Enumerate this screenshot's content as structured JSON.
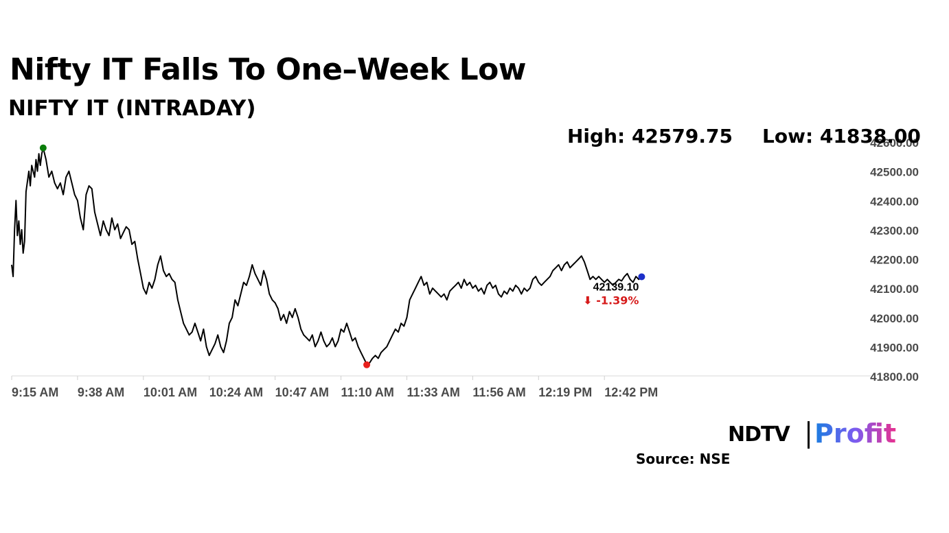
{
  "header": {
    "title": "Nifty IT Falls To One–Week Low",
    "subtitle": "NIFTY IT (INTRADAY)",
    "high_text": "High: 42579.75",
    "low_text": "Low: 41838.00"
  },
  "footer": {
    "logo_ndtv": "NDTV",
    "logo_profit": "Profit",
    "source": "Source: NSE"
  },
  "chart_data": {
    "type": "line",
    "title": "NIFTY IT (INTRADAY)",
    "xlabel": "",
    "ylabel": "",
    "ylim": [
      41800,
      42600
    ],
    "xlim": [
      0,
      300
    ],
    "yticks": [
      "42600.00",
      "42500.00",
      "42400.00",
      "42300.00",
      "42200.00",
      "42100.00",
      "42000.00",
      "41900.00",
      "41800.00"
    ],
    "ytick_values": [
      42600,
      42500,
      42400,
      42300,
      42200,
      42100,
      42000,
      41900,
      41800
    ],
    "xticks": [
      "9:15 AM",
      "9:38 AM",
      "10:01 AM",
      "10:24 AM",
      "10:47 AM",
      "11:10 AM",
      "11:33 AM",
      "11:56 AM",
      "12:19 PM",
      "12:42 PM"
    ],
    "xtick_values": [
      0,
      23,
      46,
      69,
      92,
      115,
      138,
      161,
      184,
      207
    ],
    "series": [
      {
        "name": "NIFTY IT",
        "color": "#000000",
        "points": [
          [
            0,
            42180
          ],
          [
            0.5,
            42140
          ],
          [
            1,
            42300
          ],
          [
            1.5,
            42400
          ],
          [
            2,
            42280
          ],
          [
            2.5,
            42330
          ],
          [
            3,
            42250
          ],
          [
            3.5,
            42300
          ],
          [
            4,
            42220
          ],
          [
            4.5,
            42260
          ],
          [
            5,
            42430
          ],
          [
            6,
            42500
          ],
          [
            6.5,
            42450
          ],
          [
            7,
            42520
          ],
          [
            8,
            42480
          ],
          [
            8.5,
            42540
          ],
          [
            9,
            42500
          ],
          [
            9.5,
            42560
          ],
          [
            10,
            42520
          ],
          [
            10.5,
            42560
          ],
          [
            11,
            42579.75
          ],
          [
            12,
            42540
          ],
          [
            13,
            42480
          ],
          [
            14,
            42500
          ],
          [
            15,
            42460
          ],
          [
            16,
            42440
          ],
          [
            17,
            42460
          ],
          [
            18,
            42420
          ],
          [
            19,
            42480
          ],
          [
            20,
            42500
          ],
          [
            21,
            42460
          ],
          [
            22,
            42420
          ],
          [
            23,
            42400
          ],
          [
            24,
            42340
          ],
          [
            25,
            42300
          ],
          [
            26,
            42420
          ],
          [
            27,
            42450
          ],
          [
            28,
            42440
          ],
          [
            29,
            42360
          ],
          [
            30,
            42320
          ],
          [
            31,
            42280
          ],
          [
            32,
            42330
          ],
          [
            33,
            42300
          ],
          [
            34,
            42280
          ],
          [
            35,
            42340
          ],
          [
            36,
            42300
          ],
          [
            37,
            42320
          ],
          [
            38,
            42270
          ],
          [
            39,
            42290
          ],
          [
            40,
            42310
          ],
          [
            41,
            42300
          ],
          [
            42,
            42250
          ],
          [
            43,
            42260
          ],
          [
            44,
            42200
          ],
          [
            45,
            42150
          ],
          [
            46,
            42100
          ],
          [
            47,
            42080
          ],
          [
            48,
            42120
          ],
          [
            49,
            42100
          ],
          [
            50,
            42130
          ],
          [
            51,
            42180
          ],
          [
            52,
            42210
          ],
          [
            53,
            42160
          ],
          [
            54,
            42140
          ],
          [
            55,
            42150
          ],
          [
            56,
            42130
          ],
          [
            57,
            42120
          ],
          [
            58,
            42060
          ],
          [
            59,
            42020
          ],
          [
            60,
            41980
          ],
          [
            61,
            41960
          ],
          [
            62,
            41940
          ],
          [
            63,
            41950
          ],
          [
            64,
            41980
          ],
          [
            65,
            41950
          ],
          [
            66,
            41920
          ],
          [
            67,
            41960
          ],
          [
            68,
            41900
          ],
          [
            69,
            41870
          ],
          [
            70,
            41890
          ],
          [
            71,
            41910
          ],
          [
            72,
            41940
          ],
          [
            73,
            41900
          ],
          [
            74,
            41880
          ],
          [
            75,
            41920
          ],
          [
            76,
            41980
          ],
          [
            77,
            42000
          ],
          [
            78,
            42060
          ],
          [
            79,
            42040
          ],
          [
            80,
            42080
          ],
          [
            81,
            42120
          ],
          [
            82,
            42110
          ],
          [
            83,
            42140
          ],
          [
            84,
            42180
          ],
          [
            85,
            42150
          ],
          [
            86,
            42130
          ],
          [
            87,
            42110
          ],
          [
            88,
            42160
          ],
          [
            89,
            42130
          ],
          [
            90,
            42080
          ],
          [
            91,
            42060
          ],
          [
            92,
            42050
          ],
          [
            93,
            42030
          ],
          [
            94,
            41990
          ],
          [
            95,
            42010
          ],
          [
            96,
            41980
          ],
          [
            97,
            42020
          ],
          [
            98,
            42000
          ],
          [
            99,
            42030
          ],
          [
            100,
            42000
          ],
          [
            101,
            41960
          ],
          [
            102,
            41940
          ],
          [
            103,
            41930
          ],
          [
            104,
            41920
          ],
          [
            105,
            41940
          ],
          [
            106,
            41900
          ],
          [
            107,
            41920
          ],
          [
            108,
            41950
          ],
          [
            109,
            41920
          ],
          [
            110,
            41900
          ],
          [
            111,
            41910
          ],
          [
            112,
            41930
          ],
          [
            113,
            41900
          ],
          [
            114,
            41920
          ],
          [
            115,
            41960
          ],
          [
            116,
            41950
          ],
          [
            117,
            41980
          ],
          [
            118,
            41950
          ],
          [
            119,
            41920
          ],
          [
            120,
            41930
          ],
          [
            121,
            41900
          ],
          [
            122,
            41880
          ],
          [
            123,
            41860
          ],
          [
            124,
            41840
          ],
          [
            125,
            41845
          ],
          [
            126,
            41860
          ],
          [
            127,
            41870
          ],
          [
            128,
            41860
          ],
          [
            129,
            41880
          ],
          [
            130,
            41890
          ],
          [
            131,
            41900
          ],
          [
            132,
            41920
          ],
          [
            133,
            41940
          ],
          [
            134,
            41960
          ],
          [
            135,
            41950
          ],
          [
            136,
            41980
          ],
          [
            137,
            41970
          ],
          [
            138,
            42000
          ],
          [
            139,
            42060
          ],
          [
            140,
            42080
          ],
          [
            141,
            42100
          ],
          [
            142,
            42120
          ],
          [
            143,
            42140
          ],
          [
            144,
            42110
          ],
          [
            145,
            42120
          ],
          [
            146,
            42080
          ],
          [
            147,
            42100
          ],
          [
            148,
            42090
          ],
          [
            149,
            42080
          ],
          [
            150,
            42070
          ],
          [
            151,
            42080
          ],
          [
            152,
            42060
          ],
          [
            153,
            42090
          ],
          [
            154,
            42100
          ],
          [
            155,
            42110
          ],
          [
            156,
            42120
          ],
          [
            157,
            42100
          ],
          [
            158,
            42130
          ],
          [
            159,
            42110
          ],
          [
            160,
            42120
          ],
          [
            161,
            42100
          ],
          [
            162,
            42110
          ],
          [
            163,
            42090
          ],
          [
            164,
            42100
          ],
          [
            165,
            42080
          ],
          [
            166,
            42110
          ],
          [
            167,
            42120
          ],
          [
            168,
            42100
          ],
          [
            169,
            42110
          ],
          [
            170,
            42080
          ],
          [
            171,
            42070
          ],
          [
            172,
            42090
          ],
          [
            173,
            42080
          ],
          [
            174,
            42100
          ],
          [
            175,
            42090
          ],
          [
            176,
            42110
          ],
          [
            177,
            42100
          ],
          [
            178,
            42080
          ],
          [
            179,
            42100
          ],
          [
            180,
            42090
          ],
          [
            181,
            42100
          ],
          [
            182,
            42130
          ],
          [
            183,
            42140
          ],
          [
            184,
            42120
          ],
          [
            185,
            42110
          ],
          [
            186,
            42120
          ],
          [
            187,
            42130
          ],
          [
            188,
            42140
          ],
          [
            189,
            42160
          ],
          [
            190,
            42170
          ],
          [
            191,
            42180
          ],
          [
            192,
            42160
          ],
          [
            193,
            42180
          ],
          [
            194,
            42190
          ],
          [
            195,
            42170
          ],
          [
            196,
            42180
          ],
          [
            197,
            42190
          ],
          [
            198,
            42200
          ],
          [
            199,
            42210
          ],
          [
            200,
            42190
          ],
          [
            201,
            42160
          ],
          [
            202,
            42130
          ],
          [
            203,
            42140
          ],
          [
            204,
            42130
          ],
          [
            205,
            42140
          ],
          [
            206,
            42130
          ],
          [
            207,
            42120
          ],
          [
            208,
            42130
          ],
          [
            209,
            42120
          ],
          [
            210,
            42110
          ],
          [
            211,
            42120
          ],
          [
            212,
            42130
          ],
          [
            213,
            42125
          ],
          [
            214,
            42140
          ],
          [
            215,
            42150
          ],
          [
            216,
            42130
          ],
          [
            217,
            42120
          ],
          [
            218,
            42140
          ],
          [
            219,
            42130
          ],
          [
            220,
            42139.1
          ]
        ]
      }
    ],
    "markers": [
      {
        "label": "high",
        "x": 11,
        "y": 42579.75,
        "color": "#0a7d0a"
      },
      {
        "label": "low",
        "x": 124,
        "y": 41838.0,
        "color": "#e8201c"
      },
      {
        "label": "last",
        "x": 220,
        "y": 42139.1,
        "color": "#1c2fc9"
      }
    ],
    "last_value_label": "42139.10",
    "change_label": "⬇ -1.39%",
    "change_color": "#d61a1a",
    "grid": false,
    "legend": "none"
  }
}
